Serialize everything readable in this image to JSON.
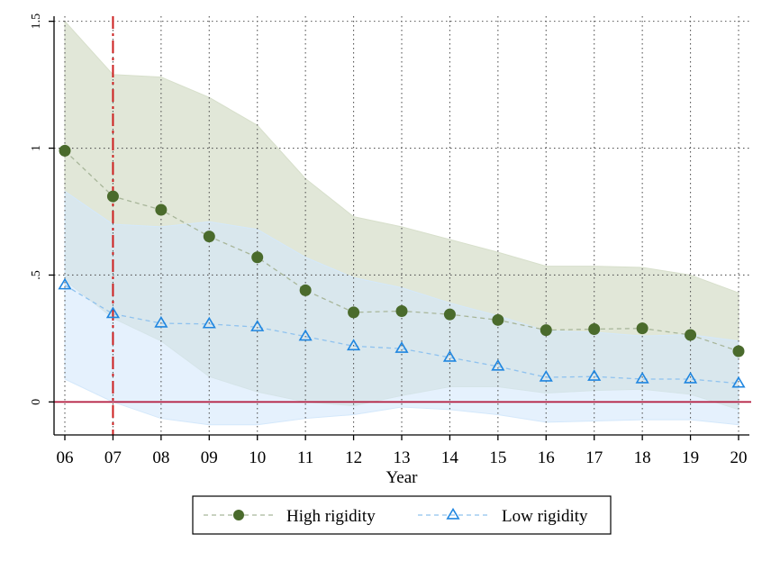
{
  "chart_data": {
    "type": "line",
    "x": [
      "06",
      "07",
      "08",
      "09",
      "10",
      "11",
      "12",
      "13",
      "14",
      "15",
      "16",
      "17",
      "18",
      "19",
      "20"
    ],
    "xlabel": "Year",
    "ylabel": "",
    "ylim": [
      -0.13,
      1.52
    ],
    "yticks": [
      0,
      0.5,
      1,
      1.5
    ],
    "ytick_labels": [
      "0",
      ".5",
      "1",
      "1.5"
    ],
    "grid": "dotted vertical and horizontal",
    "reference_lines": {
      "vertical_x": "07",
      "vertical_style": "dashed",
      "vertical_color": "#cc1f1f",
      "horizontal_y": 0,
      "horizontal_color": "#b2183c"
    },
    "series": [
      {
        "name": "High rigidity",
        "marker": "filled-circle",
        "color": "#4a6b2c",
        "band_color": "#d7dfcb",
        "values": [
          0.99,
          0.81,
          0.757,
          0.652,
          0.57,
          0.44,
          0.353,
          0.358,
          0.345,
          0.323,
          0.283,
          0.287,
          0.29,
          0.264,
          0.2
        ],
        "upper": [
          1.5,
          1.29,
          1.28,
          1.2,
          1.09,
          0.88,
          0.73,
          0.69,
          0.64,
          0.59,
          0.535,
          0.535,
          0.53,
          0.5,
          0.43
        ],
        "lower": [
          0.48,
          0.33,
          0.24,
          0.1,
          0.04,
          0.0,
          -0.015,
          0.025,
          0.06,
          0.06,
          0.035,
          0.045,
          0.05,
          0.03,
          -0.03
        ]
      },
      {
        "name": "Low rigidity",
        "marker": "hollow-triangle",
        "color": "#1f86e0",
        "band_color": "#d4e8fb",
        "values": [
          0.46,
          0.347,
          0.31,
          0.307,
          0.295,
          0.258,
          0.22,
          0.21,
          0.175,
          0.14,
          0.097,
          0.1,
          0.09,
          0.09,
          0.073
        ],
        "upper": [
          0.83,
          0.7,
          0.69,
          0.71,
          0.68,
          0.57,
          0.49,
          0.45,
          0.39,
          0.34,
          0.28,
          0.275,
          0.26,
          0.265,
          0.24
        ],
        "lower": [
          0.09,
          0.0,
          -0.065,
          -0.09,
          -0.09,
          -0.065,
          -0.05,
          -0.02,
          -0.03,
          -0.05,
          -0.08,
          -0.075,
          -0.07,
          -0.07,
          -0.09
        ]
      }
    ],
    "legend": {
      "position": "bottom-center",
      "entries": [
        "High rigidity",
        "Low rigidity"
      ]
    }
  }
}
